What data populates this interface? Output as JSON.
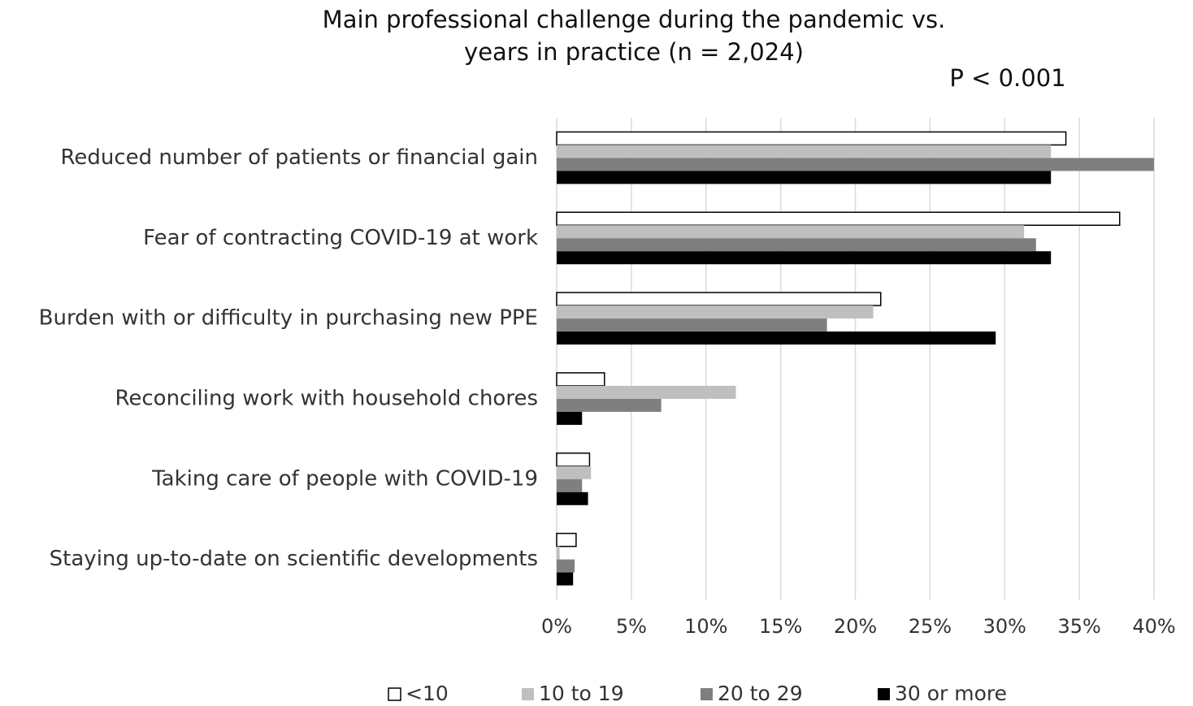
{
  "chart_data": {
    "type": "bar",
    "orientation": "horizontal",
    "title": [
      "Main professional challenge during the pandemic vs.",
      "years in practice (n = 2,024)"
    ],
    "annotation": "P < 0.001",
    "categories": [
      "Reduced number of patients or financial gain",
      "Fear of contracting COVID-19 at work",
      "Burden with or difficulty in purchasing new PPE",
      "Reconciling work with household chores",
      "Taking care of people with COVID-19",
      "Staying up-to-date on scientific developments"
    ],
    "series": [
      {
        "name": "<10",
        "color": "#ffffff",
        "values": [
          34.1,
          37.7,
          21.7,
          3.2,
          2.2,
          1.3
        ]
      },
      {
        "name": "10 to 19",
        "color": "#bfbfbf",
        "values": [
          33.1,
          31.3,
          21.2,
          12.0,
          2.3,
          0.2
        ]
      },
      {
        "name": "20 to 29",
        "color": "#7f7f7f",
        "values": [
          40.0,
          32.1,
          18.1,
          7.0,
          1.7,
          1.2
        ]
      },
      {
        "name": "30 or more",
        "color": "#000000",
        "values": [
          33.1,
          33.1,
          29.4,
          1.7,
          2.1,
          1.1
        ]
      }
    ],
    "xlim": [
      0,
      40
    ],
    "xticks": [
      {
        "value": 0,
        "label": "0%"
      },
      {
        "value": 5,
        "label": "5%"
      },
      {
        "value": 10,
        "label": "10%"
      },
      {
        "value": 15,
        "label": "15%"
      },
      {
        "value": 20,
        "label": "20%"
      },
      {
        "value": 25,
        "label": "25%"
      },
      {
        "value": 30,
        "label": "30%"
      },
      {
        "value": 35,
        "label": "35%"
      },
      {
        "value": 40,
        "label": "40%"
      }
    ],
    "grid": true,
    "legend": "bottom"
  }
}
